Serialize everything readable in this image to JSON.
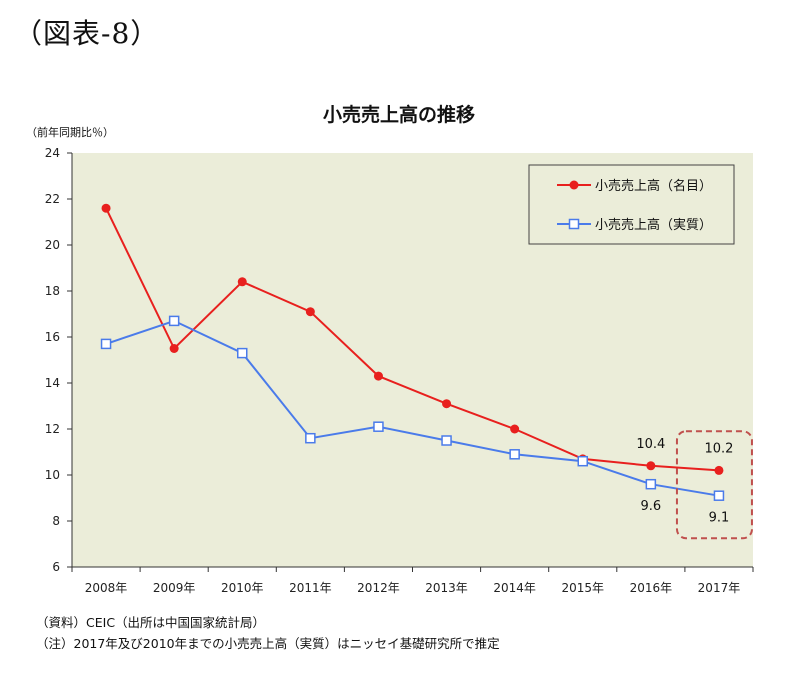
{
  "figure_label": "（図表-8）",
  "notes": [
    "（資料）CEIC（出所は中国国家統計局）",
    "（注）2017年及び2010年までの小売売上高（実質）はニッセイ基礎研究所で推定"
  ],
  "colors": {
    "plot_bg": "#ebedd9",
    "nominal": "#e8201e",
    "real": "#4a7bea",
    "highlight_box": "#c0504d"
  },
  "chart_data": {
    "type": "line",
    "title": "小売売上高の推移",
    "ylabel": "（前年同期比％）",
    "xlabel": "",
    "categories": [
      "2008年",
      "2009年",
      "2010年",
      "2011年",
      "2012年",
      "2013年",
      "2014年",
      "2015年",
      "2016年",
      "2017年"
    ],
    "ylim": [
      6,
      24
    ],
    "yticks": [
      6,
      8,
      10,
      12,
      14,
      16,
      18,
      20,
      22,
      24
    ],
    "grid": false,
    "legend_position": "top-right",
    "series": [
      {
        "name": "小売売上高（名目）",
        "marker": "filled-circle",
        "values": [
          21.6,
          15.5,
          18.4,
          17.1,
          14.3,
          13.1,
          12.0,
          10.7,
          10.4,
          10.2
        ]
      },
      {
        "name": "小売売上高（実質）",
        "marker": "open-square",
        "values": [
          15.7,
          16.7,
          15.3,
          11.6,
          12.1,
          11.5,
          10.9,
          10.6,
          9.6,
          9.1
        ]
      }
    ],
    "annotations": [
      {
        "text": "10.4",
        "series": 0,
        "index": 8
      },
      {
        "text": "10.2",
        "series": 0,
        "index": 9
      },
      {
        "text": "9.6",
        "series": 1,
        "index": 8
      },
      {
        "text": "9.1",
        "series": 1,
        "index": 9
      }
    ],
    "highlight": {
      "category": "2017年",
      "style": "dashed-rounded-box"
    }
  }
}
